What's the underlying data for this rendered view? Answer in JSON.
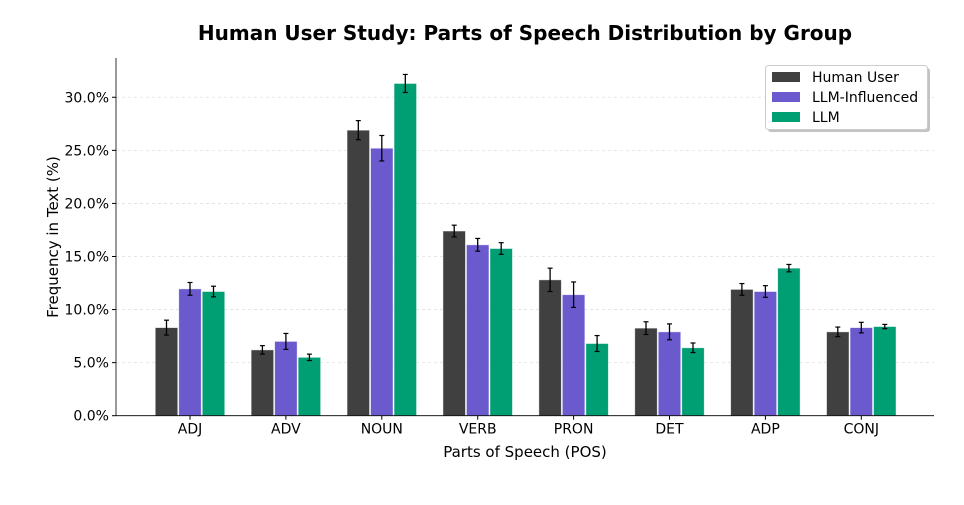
{
  "chart_data": {
    "type": "bar",
    "title": "Human User Study: Parts of Speech Distribution by Group",
    "xlabel": "Parts of Speech (POS)",
    "ylabel": "Frequency in Text (%)",
    "categories": [
      "ADJ",
      "ADV",
      "NOUN",
      "VERB",
      "PRON",
      "DET",
      "ADP",
      "CONJ"
    ],
    "ylim": [
      0,
      33.7
    ],
    "yticks": [
      0,
      5,
      10,
      15,
      20,
      25,
      30
    ],
    "ytick_labels": [
      "0.0%",
      "5.0%",
      "10.0%",
      "15.0%",
      "20.0%",
      "25.0%",
      "30.0%"
    ],
    "grid": "y, dashed",
    "legend_position": "top-right",
    "error_bars": true,
    "series": [
      {
        "name": "Human User",
        "color": "#404040",
        "values": [
          8.3,
          6.2,
          26.9,
          17.4,
          12.8,
          8.25,
          11.9,
          7.9
        ],
        "errors": [
          0.7,
          0.4,
          0.9,
          0.55,
          1.1,
          0.6,
          0.55,
          0.45
        ]
      },
      {
        "name": "LLM-Influenced",
        "color": "#6a5acd",
        "values": [
          11.95,
          7.0,
          25.2,
          16.1,
          11.4,
          7.9,
          11.7,
          8.3
        ],
        "errors": [
          0.6,
          0.75,
          1.2,
          0.6,
          1.2,
          0.75,
          0.55,
          0.5
        ]
      },
      {
        "name": "LLM",
        "color": "#009e73",
        "values": [
          11.7,
          5.5,
          31.3,
          15.75,
          6.8,
          6.4,
          13.9,
          8.4
        ],
        "errors": [
          0.5,
          0.3,
          0.85,
          0.55,
          0.75,
          0.45,
          0.35,
          0.2
        ]
      }
    ]
  }
}
